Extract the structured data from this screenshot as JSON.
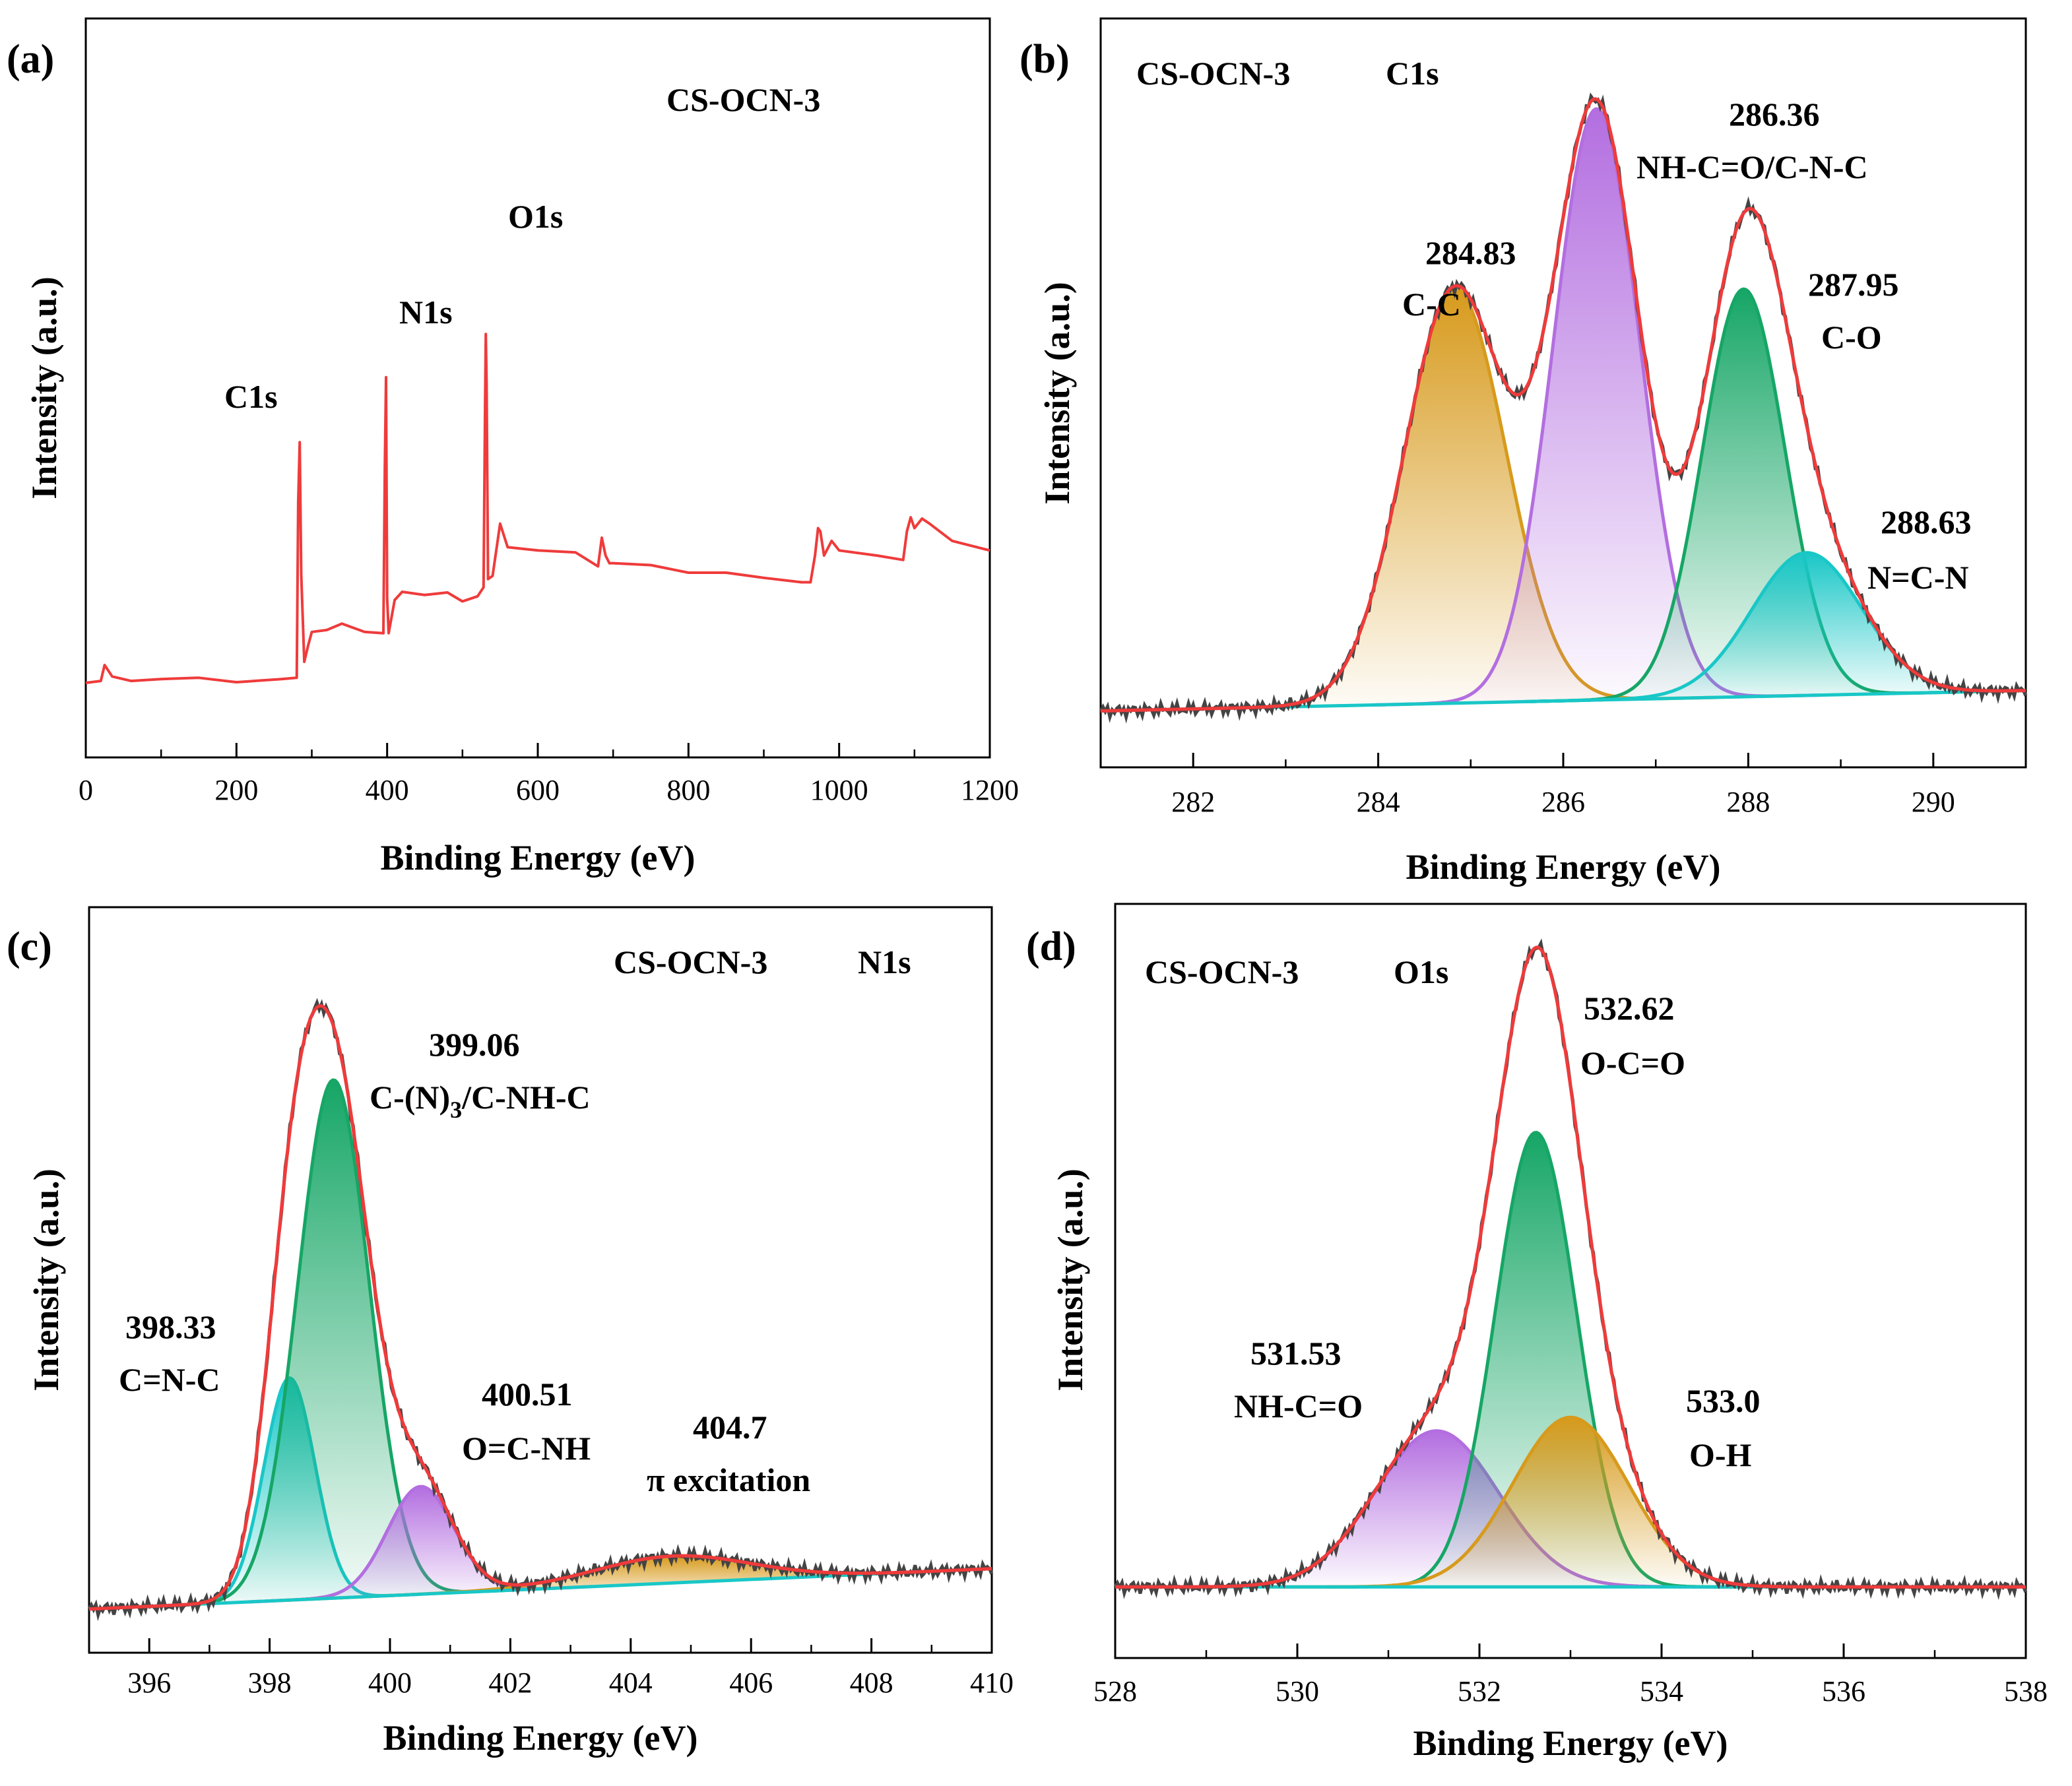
{
  "figure": {
    "sample": "CS-OCN-3",
    "xlabel": "Binding Energy (eV)",
    "ylabel": "Intensity (a.u.)",
    "colors": {
      "envelope": "#ef3b3b",
      "raw": "#444444",
      "baseline": "#19c7c7",
      "cc": "#d79a1c",
      "nhco": "#b36ee0",
      "co": "#16a666",
      "ncn": "#19c7c7",
      "oh": "#d79a1c",
      "survey": "#ef3b3b"
    }
  },
  "chart_data": [
    {
      "id": "a",
      "label": "(a)",
      "type": "line",
      "title": "CS-OCN-3",
      "xlabel": "Binding Energy (eV)",
      "ylabel": "Intensity (a.u.)",
      "xlim": [
        0,
        1200
      ],
      "ylim": [
        0,
        100
      ],
      "xticks": [
        0,
        200,
        400,
        600,
        800,
        1000,
        1200
      ],
      "series": [
        {
          "name": "survey",
          "x": [
            0,
            20,
            25,
            35,
            60,
            100,
            150,
            200,
            260,
            280,
            282,
            284,
            286,
            290,
            295,
            300,
            320,
            340,
            370,
            395,
            397,
            398.5,
            400,
            402,
            410,
            420,
            450,
            480,
            500,
            520,
            528,
            530,
            531,
            532,
            534,
            540,
            550,
            560,
            600,
            650,
            680,
            685,
            690,
            695,
            700,
            750,
            800,
            850,
            900,
            950,
            962,
            968,
            972,
            975,
            980,
            990,
            1000,
            1050,
            1085,
            1090,
            1095,
            1100,
            1110,
            1120,
            1150,
            1200
          ],
          "y": [
            11,
            12,
            14,
            12,
            12,
            11.8,
            11.8,
            11.8,
            11.8,
            11.8,
            40,
            49,
            28,
            15,
            17,
            19,
            20,
            20.5,
            19,
            19.5,
            45,
            59,
            25,
            19,
            24,
            26,
            25,
            25.2,
            24.5,
            24.8,
            26,
            55,
            66,
            58,
            28,
            28,
            36,
            33,
            32,
            31.5,
            30,
            34,
            31,
            30.5,
            30,
            29.5,
            29,
            28.5,
            27.5,
            27.5,
            27,
            31,
            36,
            35,
            31,
            34,
            32,
            31,
            31,
            35,
            37,
            36,
            37,
            36,
            34,
            32
          ]
        }
      ],
      "peak_labels": [
        {
          "x": 284,
          "y": 49,
          "text": "C1s"
        },
        {
          "x": 398.5,
          "y": 59,
          "text": "N1s"
        },
        {
          "x": 531,
          "y": 66,
          "text": "O1s"
        }
      ]
    },
    {
      "id": "b",
      "label": "(b)",
      "type": "area",
      "title": "CS-OCN-3",
      "subtitle": "C1s",
      "xlabel": "Binding Energy (eV)",
      "ylabel": "Intensity (a.u.)",
      "xlim": [
        281,
        291
      ],
      "ylim": [
        0,
        100
      ],
      "xticks": [
        282,
        284,
        286,
        288,
        290
      ],
      "baseline": [
        8,
        11
      ],
      "peaks": [
        {
          "name": "C-C",
          "center": 284.83,
          "height": 61,
          "fwhm": 1.3,
          "color": "cc",
          "label": [
            "284.83",
            "C-C"
          ]
        },
        {
          "name": "NH-C=O/C-N-C",
          "center": 286.36,
          "height": 87,
          "fwhm": 1.1,
          "color": "nhco",
          "label": [
            "286.36",
            "NH-C=O/C-N-C"
          ]
        },
        {
          "name": "C-O",
          "center": 287.95,
          "height": 60,
          "fwhm": 1.05,
          "color": "co",
          "label": [
            "287.95",
            "C-O"
          ]
        },
        {
          "name": "N=C-N",
          "center": 288.63,
          "height": 21,
          "fwhm": 1.4,
          "color": "ncn",
          "label": [
            "288.63",
            "N=C-N"
          ]
        }
      ]
    },
    {
      "id": "c",
      "label": "(c)",
      "type": "area",
      "title": "CS-OCN-3",
      "subtitle": "N1s",
      "xlabel": "Binding Energy (eV)",
      "ylabel": "Intensity (a.u.)",
      "xlim": [
        395,
        410
      ],
      "ylim": [
        0,
        100
      ],
      "xticks": [
        396,
        398,
        400,
        402,
        404,
        406,
        408,
        410
      ],
      "baseline": [
        6,
        12
      ],
      "peaks": [
        {
          "name": "C=N-C",
          "center": 398.33,
          "height": 33,
          "fwhm": 1.0,
          "color": "ncn",
          "label": [
            "398.33",
            "C=N-C"
          ]
        },
        {
          "name": "C-(N)3/C-NH-C",
          "center": 399.06,
          "height": 77,
          "fwhm": 1.4,
          "color": "co",
          "label": [
            "399.06",
            "C-(N)3/C-NH-C"
          ]
        },
        {
          "name": "O=C-NH",
          "center": 400.51,
          "height": 16,
          "fwhm": 1.3,
          "color": "nhco",
          "label": [
            "400.51",
            "O=C-NH"
          ]
        },
        {
          "name": "π excitation",
          "center": 404.7,
          "height": 4,
          "fwhm": 3.0,
          "color": "cc",
          "label": [
            "404.7",
            "π excitation"
          ]
        }
      ]
    },
    {
      "id": "d",
      "label": "(d)",
      "type": "area",
      "title": "CS-OCN-3",
      "subtitle": "O1s",
      "xlabel": "Binding Energy (eV)",
      "ylabel": "Intensity (a.u.)",
      "xlim": [
        528,
        538
      ],
      "ylim": [
        0,
        100
      ],
      "xticks": [
        528,
        530,
        532,
        534,
        536,
        538
      ],
      "baseline": [
        10,
        10
      ],
      "peaks": [
        {
          "name": "NH-C=O",
          "center": 531.53,
          "height": 23,
          "fwhm": 1.6,
          "color": "nhco",
          "label": [
            "531.53",
            "NH-C=O"
          ]
        },
        {
          "name": "O-C=O",
          "center": 532.62,
          "height": 67,
          "fwhm": 1.05,
          "color": "co",
          "label": [
            "532.62",
            "O-C=O"
          ]
        },
        {
          "name": "O-H",
          "center": 533.0,
          "height": 25,
          "fwhm": 1.5,
          "color": "oh",
          "label": [
            "533.0",
            "O-H"
          ]
        }
      ]
    }
  ]
}
